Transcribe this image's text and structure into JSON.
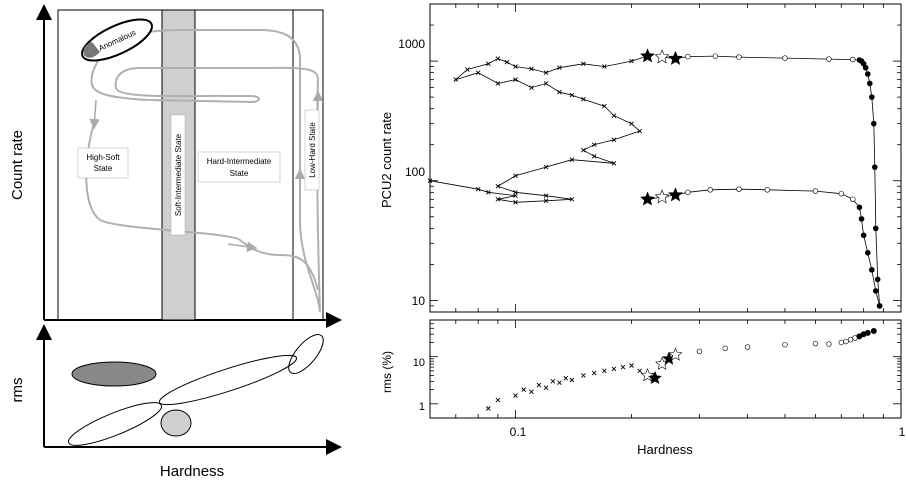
{
  "chart_data": [
    {
      "type": "diagram",
      "panel": "schematic-hid",
      "xlabel": "Hardness",
      "ylabel_top": "Count rate",
      "ylabel_bottom": "rms",
      "states": {
        "anomalous": "Anomalous",
        "high_soft": [
          "High-Soft",
          "State"
        ],
        "soft_intermediate": "Soft-Intermediate State",
        "hard_intermediate": [
          "Hard-Intermediate",
          "State"
        ],
        "low_hard": "Low-Hard State"
      }
    },
    {
      "type": "scatter",
      "panel": "hardness-intensity",
      "xlabel": "Hardness",
      "ylabel_top": "PCU2 count  rate",
      "ylabel_bottom": "rms (%)",
      "x_scale": "log",
      "y_scale": "log",
      "xlim": [
        0.06,
        1
      ],
      "ylim": [
        8,
        3000
      ],
      "x_ticks": [
        "0.1",
        "1"
      ],
      "y_ticks": [
        "10",
        "100",
        "1000"
      ],
      "rms_ticks": [
        "1",
        "10"
      ],
      "outburst_1": {
        "hardness": [
          0.88,
          0.87,
          0.86,
          0.855,
          0.85,
          0.84,
          0.83,
          0.82,
          0.81,
          0.8,
          0.79,
          0.78,
          0.75,
          0.65,
          0.5,
          0.38,
          0.33,
          0.28,
          0.26,
          0.24
        ],
        "count_rate": [
          9,
          15,
          40,
          130,
          300,
          500,
          650,
          780,
          880,
          950,
          1000,
          1020,
          1030,
          1040,
          1060,
          1080,
          1100,
          1090,
          1050,
          1080
        ]
      },
      "outburst_2": {
        "hardness": [
          0.88,
          0.86,
          0.84,
          0.82,
          0.8,
          0.79,
          0.78,
          0.75,
          0.7,
          0.6,
          0.45,
          0.38,
          0.32,
          0.28,
          0.26,
          0.24,
          0.22
        ],
        "count_rate": [
          9,
          12,
          18,
          25,
          35,
          48,
          60,
          70,
          78,
          82,
          84,
          85,
          84,
          80,
          76,
          73,
          70
        ]
      },
      "soft_branch": {
        "hardness": [
          0.22,
          0.2,
          0.17,
          0.15,
          0.13,
          0.12,
          0.11,
          0.1,
          0.095,
          0.09,
          0.085,
          0.075,
          0.07,
          0.08,
          0.09,
          0.1,
          0.11,
          0.12,
          0.13,
          0.14,
          0.15,
          0.17,
          0.18,
          0.2,
          0.21,
          0.18,
          0.16,
          0.15,
          0.16,
          0.18,
          0.14,
          0.12,
          0.1,
          0.09,
          0.1,
          0.12,
          0.14,
          0.12,
          0.1,
          0.09,
          0.1,
          0.085,
          0.08,
          0.06
        ],
        "count_rate": [
          1100,
          1000,
          900,
          950,
          880,
          800,
          860,
          900,
          980,
          1050,
          950,
          850,
          700,
          800,
          650,
          700,
          600,
          650,
          550,
          520,
          480,
          420,
          350,
          300,
          260,
          220,
          200,
          180,
          160,
          140,
          150,
          130,
          110,
          90,
          80,
          75,
          70,
          68,
          66,
          70,
          75,
          80,
          85,
          100
        ]
      },
      "rms": {
        "hardness": [
          0.085,
          0.09,
          0.1,
          0.105,
          0.11,
          0.115,
          0.12,
          0.125,
          0.13,
          0.135,
          0.14,
          0.15,
          0.16,
          0.17,
          0.18,
          0.19,
          0.2,
          0.21,
          0.22,
          0.23,
          0.24,
          0.25,
          0.26,
          0.3,
          0.35,
          0.4,
          0.5,
          0.6,
          0.65,
          0.7,
          0.72,
          0.74,
          0.76,
          0.78,
          0.8,
          0.82,
          0.85
        ],
        "rms_percent": [
          0.8,
          1.2,
          1.5,
          2.0,
          1.8,
          2.5,
          2.2,
          3.0,
          2.8,
          3.5,
          3.2,
          4.0,
          4.5,
          5.0,
          5.5,
          6.0,
          6.5,
          5.0,
          4.0,
          3.5,
          7.0,
          9.0,
          11.0,
          13.0,
          15.0,
          16.0,
          18.0,
          19.0,
          18.5,
          20.0,
          21.0,
          23.0,
          25.0,
          27.0,
          30.0,
          32.0,
          35.0
        ]
      }
    }
  ]
}
